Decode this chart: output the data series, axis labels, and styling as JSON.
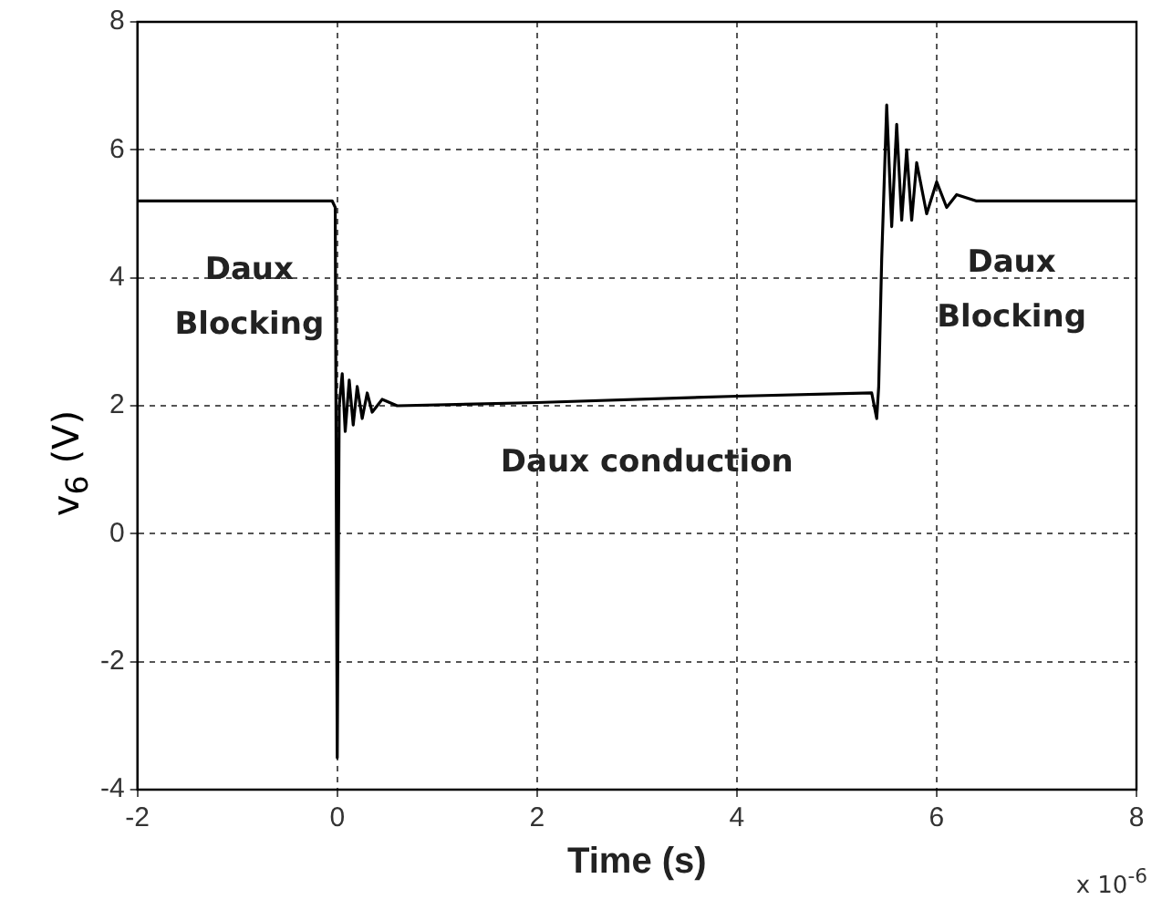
{
  "chart_data": {
    "type": "line",
    "xlabel": "Time (s)",
    "ylabel": "v$_{6}$ (V)",
    "x": [
      -2,
      -0.05,
      -0.02,
      0,
      0.02,
      0.05,
      0.08,
      0.12,
      0.16,
      0.2,
      0.25,
      0.3,
      0.35,
      0.45,
      0.6,
      2,
      4,
      5.35,
      5.4,
      5.42,
      5.45,
      5.5,
      5.55,
      5.6,
      5.65,
      5.7,
      5.75,
      5.8,
      5.9,
      6,
      6.1,
      6.2,
      6.4,
      8
    ],
    "series": [
      {
        "color": "#000000",
        "values": [
          5.2,
          5.2,
          5.1,
          -3.5,
          2.0,
          2.5,
          1.6,
          2.4,
          1.7,
          2.3,
          1.8,
          2.2,
          1.9,
          2.1,
          2.0,
          2.05,
          2.15,
          2.2,
          1.8,
          2.3,
          4.3,
          6.7,
          4.8,
          6.4,
          4.9,
          6.0,
          4.9,
          5.8,
          5.0,
          5.5,
          5.1,
          5.3,
          5.2,
          5.2
        ]
      }
    ],
    "xlim": [
      -2,
      8
    ],
    "xticks": [
      -2,
      0,
      2,
      4,
      6,
      8
    ],
    "ylim": [
      -4,
      8
    ],
    "yticks": [
      -4,
      -2,
      0,
      2,
      4,
      6,
      8
    ],
    "grid": true,
    "line_style": "solid",
    "marker": "none",
    "annotations": [
      "Daux\nBlocking",
      "Daux conduction",
      "Daux\nBlocking",
      "x 10$^{-6}$"
    ]
  }
}
